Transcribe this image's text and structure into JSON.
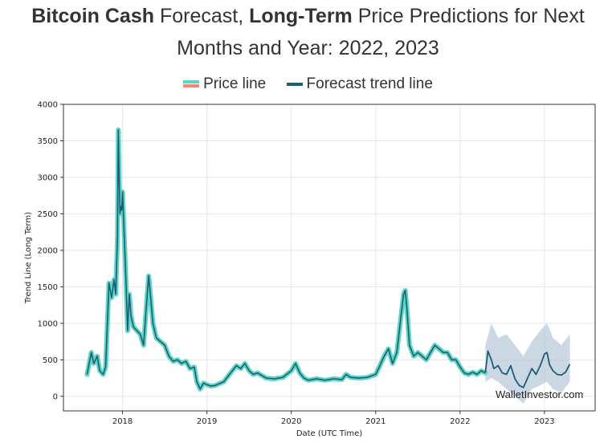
{
  "title": {
    "part1_bold": "Bitcoin Cash",
    "part2": " Forecast, ",
    "part3_bold": "Long-Term",
    "part4": " Price Predictions for Next",
    "line2": "Months and Year: 2022, 2023"
  },
  "legend": {
    "price_label": "Price line",
    "forecast_label": "Forecast trend line"
  },
  "watermark": "WalletInvestor.com",
  "colors": {
    "price_line": "#5ed6c4",
    "price_line_alt": "#f08a70",
    "forecast_line": "#1e5c78",
    "forecast_band": "#b9cad8",
    "grid": "#e6e6e6"
  },
  "chart_data": {
    "type": "line",
    "xlabel": "Date (UTC Time)",
    "ylabel": "Trend Line (Long Term)",
    "ylim": [
      -200,
      4000
    ],
    "xlim": [
      2017.3,
      2023.6
    ],
    "x_ticks": [
      "2018",
      "2019",
      "2020",
      "2021",
      "2022",
      "2023"
    ],
    "y_ticks": [
      "0",
      "500",
      "1000",
      "1500",
      "2000",
      "2500",
      "3000",
      "3500",
      "4000"
    ],
    "grid": true,
    "legend_position": "top",
    "series": [
      {
        "name": "Price line",
        "x": [
          2017.58,
          2017.63,
          2017.66,
          2017.7,
          2017.73,
          2017.77,
          2017.8,
          2017.84,
          2017.87,
          2017.9,
          2017.92,
          2017.94,
          2017.95,
          2017.96,
          2017.97,
          2017.98,
          2017.99,
          2018.0,
          2018.02,
          2018.04,
          2018.06,
          2018.08,
          2018.1,
          2018.13,
          2018.17,
          2018.21,
          2018.25,
          2018.28,
          2018.31,
          2018.33,
          2018.36,
          2018.4,
          2018.45,
          2018.5,
          2018.55,
          2018.6,
          2018.65,
          2018.7,
          2018.75,
          2018.8,
          2018.85,
          2018.88,
          2018.92,
          2018.96,
          2019.0,
          2019.05,
          2019.1,
          2019.2,
          2019.3,
          2019.35,
          2019.4,
          2019.45,
          2019.5,
          2019.55,
          2019.6,
          2019.7,
          2019.8,
          2019.9,
          2020.0,
          2020.05,
          2020.1,
          2020.15,
          2020.2,
          2020.3,
          2020.4,
          2020.5,
          2020.6,
          2020.65,
          2020.7,
          2020.8,
          2020.9,
          2021.0,
          2021.05,
          2021.1,
          2021.15,
          2021.2,
          2021.25,
          2021.3,
          2021.33,
          2021.35,
          2021.37,
          2021.4,
          2021.45,
          2021.5,
          2021.55,
          2021.6,
          2021.65,
          2021.7,
          2021.75,
          2021.8,
          2021.85,
          2021.9,
          2021.95,
          2022.0,
          2022.05,
          2022.1,
          2022.15,
          2022.2,
          2022.25,
          2022.3
        ],
        "values": [
          300,
          600,
          450,
          550,
          350,
          300,
          400,
          1550,
          1350,
          1600,
          1400,
          2200,
          3650,
          3000,
          2500,
          2600,
          2550,
          2800,
          2200,
          1600,
          900,
          1400,
          1100,
          950,
          900,
          850,
          700,
          1200,
          1650,
          1400,
          1000,
          800,
          750,
          700,
          550,
          480,
          500,
          450,
          480,
          380,
          400,
          200,
          100,
          180,
          160,
          140,
          150,
          200,
          350,
          420,
          380,
          450,
          350,
          300,
          320,
          250,
          240,
          260,
          350,
          450,
          320,
          250,
          220,
          240,
          220,
          240,
          230,
          300,
          260,
          250,
          260,
          300,
          420,
          550,
          650,
          450,
          600,
          1100,
          1400,
          1450,
          1200,
          700,
          550,
          600,
          550,
          500,
          600,
          700,
          650,
          600,
          600,
          500,
          500,
          400,
          320,
          300,
          330,
          300,
          350,
          320
        ]
      },
      {
        "name": "Forecast trend line",
        "x": [
          2022.3,
          2022.33,
          2022.37,
          2022.4,
          2022.45,
          2022.5,
          2022.55,
          2022.6,
          2022.65,
          2022.7,
          2022.75,
          2022.8,
          2022.85,
          2022.9,
          2022.95,
          2023.0,
          2023.03,
          2023.06,
          2023.1,
          2023.15,
          2023.2,
          2023.25,
          2023.3
        ],
        "values": [
          330,
          620,
          500,
          380,
          420,
          320,
          300,
          420,
          240,
          150,
          120,
          250,
          380,
          300,
          420,
          580,
          600,
          430,
          350,
          300,
          290,
          330,
          440
        ]
      }
    ],
    "forecast_band": {
      "x": [
        2022.3,
        2022.37,
        2022.45,
        2022.55,
        2022.65,
        2022.75,
        2022.85,
        2022.95,
        2023.03,
        2023.1,
        2023.2,
        2023.3
      ],
      "upper": [
        700,
        1000,
        800,
        850,
        700,
        550,
        750,
        900,
        1000,
        800,
        700,
        850
      ],
      "lower": [
        200,
        250,
        200,
        100,
        0,
        -100,
        100,
        150,
        200,
        100,
        50,
        200
      ]
    }
  }
}
